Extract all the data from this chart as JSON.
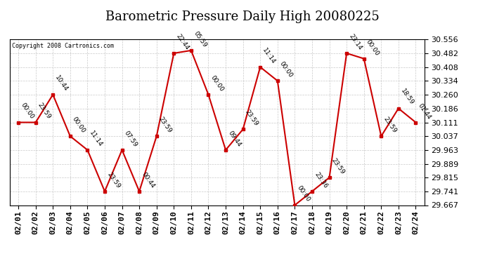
{
  "title": "Barometric Pressure Daily High 20080225",
  "copyright": "Copyright 2008 Cartronics.com",
  "dates": [
    "02/01",
    "02/02",
    "02/03",
    "02/04",
    "02/05",
    "02/06",
    "02/07",
    "02/08",
    "02/09",
    "02/10",
    "02/11",
    "02/12",
    "02/13",
    "02/14",
    "02/15",
    "02/16",
    "02/17",
    "02/18",
    "02/19",
    "02/20",
    "02/21",
    "02/22",
    "02/23",
    "02/24"
  ],
  "values": [
    30.111,
    30.111,
    30.26,
    30.037,
    29.963,
    29.741,
    29.963,
    29.741,
    30.037,
    30.482,
    30.497,
    30.26,
    29.963,
    30.074,
    30.408,
    30.334,
    29.667,
    29.741,
    29.815,
    30.482,
    30.453,
    30.037,
    30.186,
    30.111
  ],
  "labels": [
    "00:00",
    "23:59",
    "10:44",
    "00:00",
    "11:14",
    "23:59",
    "07:59",
    "00:44",
    "23:59",
    "22:44",
    "05:59",
    "00:00",
    "09:44",
    "23:59",
    "11:14",
    "00:00",
    "00:00",
    "23:36",
    "23:59",
    "23:14",
    "00:00",
    "23:59",
    "18:59",
    "01:44"
  ],
  "ylim_min": 29.667,
  "ylim_max": 30.556,
  "yticks": [
    29.667,
    29.741,
    29.815,
    29.889,
    29.963,
    30.037,
    30.111,
    30.186,
    30.26,
    30.334,
    30.408,
    30.482,
    30.556
  ],
  "line_color": "#cc0000",
  "marker_color": "#cc0000",
  "bg_color": "#ffffff",
  "grid_color": "#bbbbbb",
  "title_fontsize": 13,
  "tick_fontsize": 8,
  "label_fontsize": 6.5
}
